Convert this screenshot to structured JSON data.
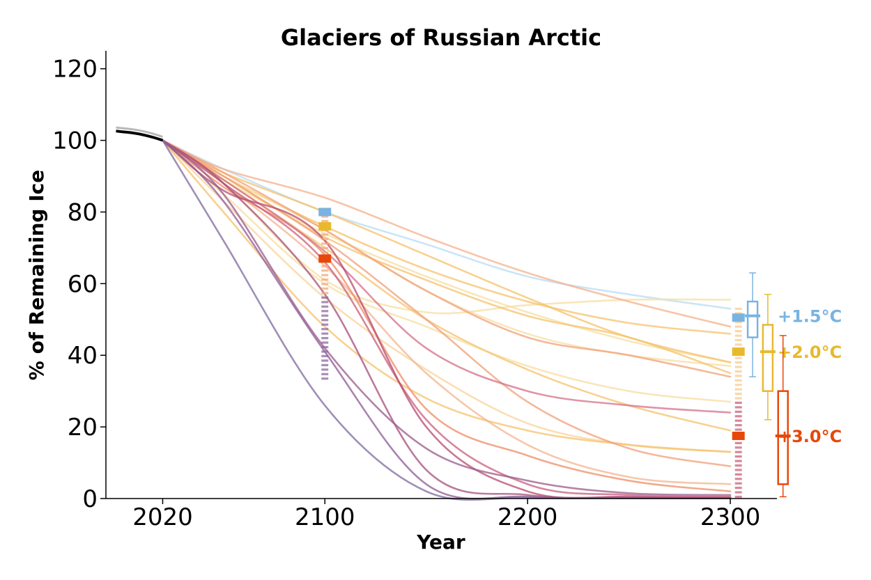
{
  "chart_data": {
    "type": "line",
    "title": "Glaciers of Russian Arctic",
    "xlabel": "Year",
    "ylabel": "% of Remaining Ice",
    "xlim": [
      1992,
      2323
    ],
    "ylim": [
      0,
      125
    ],
    "xticks": [
      2020,
      2100,
      2200,
      2300
    ],
    "yticks": [
      0,
      20,
      40,
      60,
      80,
      100,
      120
    ],
    "grid": false,
    "colors": {
      "historical": "#000000",
      "1.5": "#7ab3e0",
      "2.0": "#e8b92c",
      "3.0": "#e8470a"
    },
    "historical": {
      "x": [
        1997,
        2000,
        2005,
        2010,
        2015,
        2020
      ],
      "y": [
        102.6,
        102.4,
        102.1,
        101.6,
        100.9,
        100.0
      ]
    },
    "series": [
      {
        "scenario": "1.5",
        "color": "#b8dcf4",
        "x": [
          2020,
          2050,
          2100,
          2150,
          2200,
          2250,
          2300
        ],
        "y": [
          100,
          92,
          80,
          71,
          62,
          57,
          53
        ]
      },
      {
        "scenario": "2.0",
        "color": "#f7dea0",
        "x": [
          2020,
          2050,
          2100,
          2150,
          2200,
          2250,
          2300
        ],
        "y": [
          100,
          88,
          61,
          52,
          54,
          55.5,
          55.5
        ]
      },
      {
        "scenario": "2.0",
        "color": "#f5c16b",
        "x": [
          2020,
          2050,
          2100,
          2150,
          2200,
          2250,
          2300
        ],
        "y": [
          100,
          90,
          76,
          64,
          55,
          49,
          46
        ]
      },
      {
        "scenario": "2.0",
        "color": "#f7dea0",
        "x": [
          2020,
          2050,
          2100,
          2150,
          2200,
          2250,
          2300
        ],
        "y": [
          100,
          89,
          74,
          62,
          52,
          44,
          38
        ]
      },
      {
        "scenario": "2.0",
        "color": "#f5c16b",
        "x": [
          2020,
          2050,
          2100,
          2150,
          2200,
          2250,
          2300
        ],
        "y": [
          100,
          91,
          80,
          68,
          56,
          45,
          38
        ]
      },
      {
        "scenario": "2.0",
        "color": "#f7dea0",
        "x": [
          2020,
          2050,
          2100,
          2150,
          2200,
          2250,
          2300
        ],
        "y": [
          100,
          90,
          75,
          58,
          46,
          40,
          37
        ]
      },
      {
        "scenario": "2.0",
        "color": "#f5c16b",
        "x": [
          2020,
          2050,
          2100,
          2150,
          2200,
          2250,
          2300
        ],
        "y": [
          100,
          90,
          73,
          61,
          51,
          45,
          35
        ]
      },
      {
        "scenario": "2.0",
        "color": "#f7dea0",
        "x": [
          2020,
          2050,
          2100,
          2150,
          2200,
          2250,
          2300
        ],
        "y": [
          100,
          85,
          60,
          48,
          37,
          30,
          27
        ]
      },
      {
        "scenario": "2.0",
        "color": "#f5c16b",
        "x": [
          2020,
          2050,
          2100,
          2150,
          2200,
          2250,
          2300
        ],
        "y": [
          100,
          89,
          70,
          50,
          36,
          26,
          19
        ]
      },
      {
        "scenario": "2.0",
        "color": "#f8d49a",
        "x": [
          2020,
          2050,
          2100,
          2150,
          2200,
          2250,
          2300
        ],
        "y": [
          100,
          83,
          56,
          36,
          21,
          15,
          13
        ]
      },
      {
        "scenario": "2.0",
        "color": "#f5c16b",
        "x": [
          2020,
          2050,
          2100,
          2150,
          2200,
          2250,
          2300
        ],
        "y": [
          100,
          80,
          48,
          28,
          19,
          15,
          13
        ]
      },
      {
        "scenario": "3.0",
        "color": "#f5b08a",
        "x": [
          2020,
          2050,
          2100,
          2150,
          2200,
          2250,
          2300
        ],
        "y": [
          100,
          92,
          84,
          73,
          63,
          55,
          48
        ]
      },
      {
        "scenario": "3.0",
        "color": "#f0a07a",
        "x": [
          2020,
          2050,
          2100,
          2150,
          2200,
          2250,
          2300
        ],
        "y": [
          100,
          91,
          75,
          58,
          45,
          40,
          34
        ]
      },
      {
        "scenario": "3.0",
        "color": "#f0a07a",
        "x": [
          2020,
          2050,
          2100,
          2150,
          2200,
          2250,
          2300
        ],
        "y": [
          100,
          90,
          72,
          50,
          27,
          14,
          9
        ]
      },
      {
        "scenario": "3.0",
        "color": "#f3b48e",
        "x": [
          2020,
          2050,
          2100,
          2150,
          2200,
          2250,
          2300
        ],
        "y": [
          100,
          88,
          65,
          35,
          15,
          6,
          4
        ]
      },
      {
        "scenario": "3.0",
        "color": "#ee8c66",
        "x": [
          2020,
          2050,
          2100,
          2150,
          2200,
          2250,
          2300
        ],
        "y": [
          100,
          87,
          68,
          25,
          12,
          5,
          2
        ]
      },
      {
        "scenario": "3.0",
        "color": "#d47088",
        "x": [
          2020,
          2050,
          2100,
          2150,
          2200,
          2250,
          2300
        ],
        "y": [
          100,
          89,
          69,
          42,
          30,
          26,
          24
        ]
      },
      {
        "scenario": "3.0",
        "color": "#c85e7a",
        "x": [
          2020,
          2050,
          2100,
          2150,
          2200,
          2250,
          2300
        ],
        "y": [
          100,
          88,
          66,
          22,
          4,
          1,
          0.5
        ]
      },
      {
        "scenario": "3.0",
        "color": "#b84a6e",
        "x": [
          2020,
          2050,
          2100,
          2150,
          2200,
          2250,
          2300
        ],
        "y": [
          100,
          86,
          72,
          20,
          2,
          0.5,
          0.3
        ]
      },
      {
        "scenario": "3.0",
        "color": "#a64e7a",
        "x": [
          2020,
          2050,
          2100,
          2150,
          2200,
          2250,
          2300
        ],
        "y": [
          100,
          88,
          57,
          8,
          1,
          0.3,
          0.2
        ]
      },
      {
        "scenario": "3.0",
        "color": "#9a5a8a",
        "x": [
          2020,
          2050,
          2100,
          2150,
          2200,
          2250,
          2300
        ],
        "y": [
          100,
          85,
          42,
          14,
          5,
          1.5,
          1
        ]
      },
      {
        "scenario": "3.0",
        "color": "#8d5a96",
        "x": [
          2020,
          2050,
          2100,
          2150,
          2200,
          2250,
          2300
        ],
        "y": [
          100,
          83,
          41,
          4,
          0.5,
          0.2,
          0.1
        ]
      },
      {
        "scenario": "3.0",
        "color": "#7f6aa0",
        "x": [
          2020,
          2050,
          2100,
          2150,
          2200,
          2250,
          2300
        ],
        "y": [
          100,
          72,
          26,
          2,
          0.3,
          0.1,
          0.1
        ]
      }
    ],
    "markers_2100": [
      {
        "scenario": "1.5",
        "value": 80,
        "color": "#7ab3e0"
      },
      {
        "scenario": "2.0",
        "value": 76,
        "color": "#e8b92c"
      },
      {
        "scenario": "3.0",
        "value": 67,
        "color": "#e8470a"
      }
    ],
    "markers_2300": [
      {
        "scenario": "1.5",
        "value": 50.5,
        "color": "#7ab3e0"
      },
      {
        "scenario": "2.0",
        "value": 41,
        "color": "#e8b92c"
      },
      {
        "scenario": "3.0",
        "value": 17.5,
        "color": "#e8470a"
      }
    ],
    "boxplots": [
      {
        "label": "+1.5°C",
        "color": "#7ab3e0",
        "whisker_low": 34,
        "q1": 45,
        "median": 51,
        "q3": 55,
        "whisker_high": 63
      },
      {
        "label": "+2.0°C",
        "color": "#e8b92c",
        "whisker_low": 22,
        "q1": 30,
        "median": 41,
        "q3": 48.5,
        "whisker_high": 57
      },
      {
        "label": "+3.0°C",
        "color": "#e8470a",
        "whisker_low": 0.5,
        "q1": 4,
        "median": 17.5,
        "q3": 30,
        "whisker_high": 45.5
      }
    ]
  }
}
